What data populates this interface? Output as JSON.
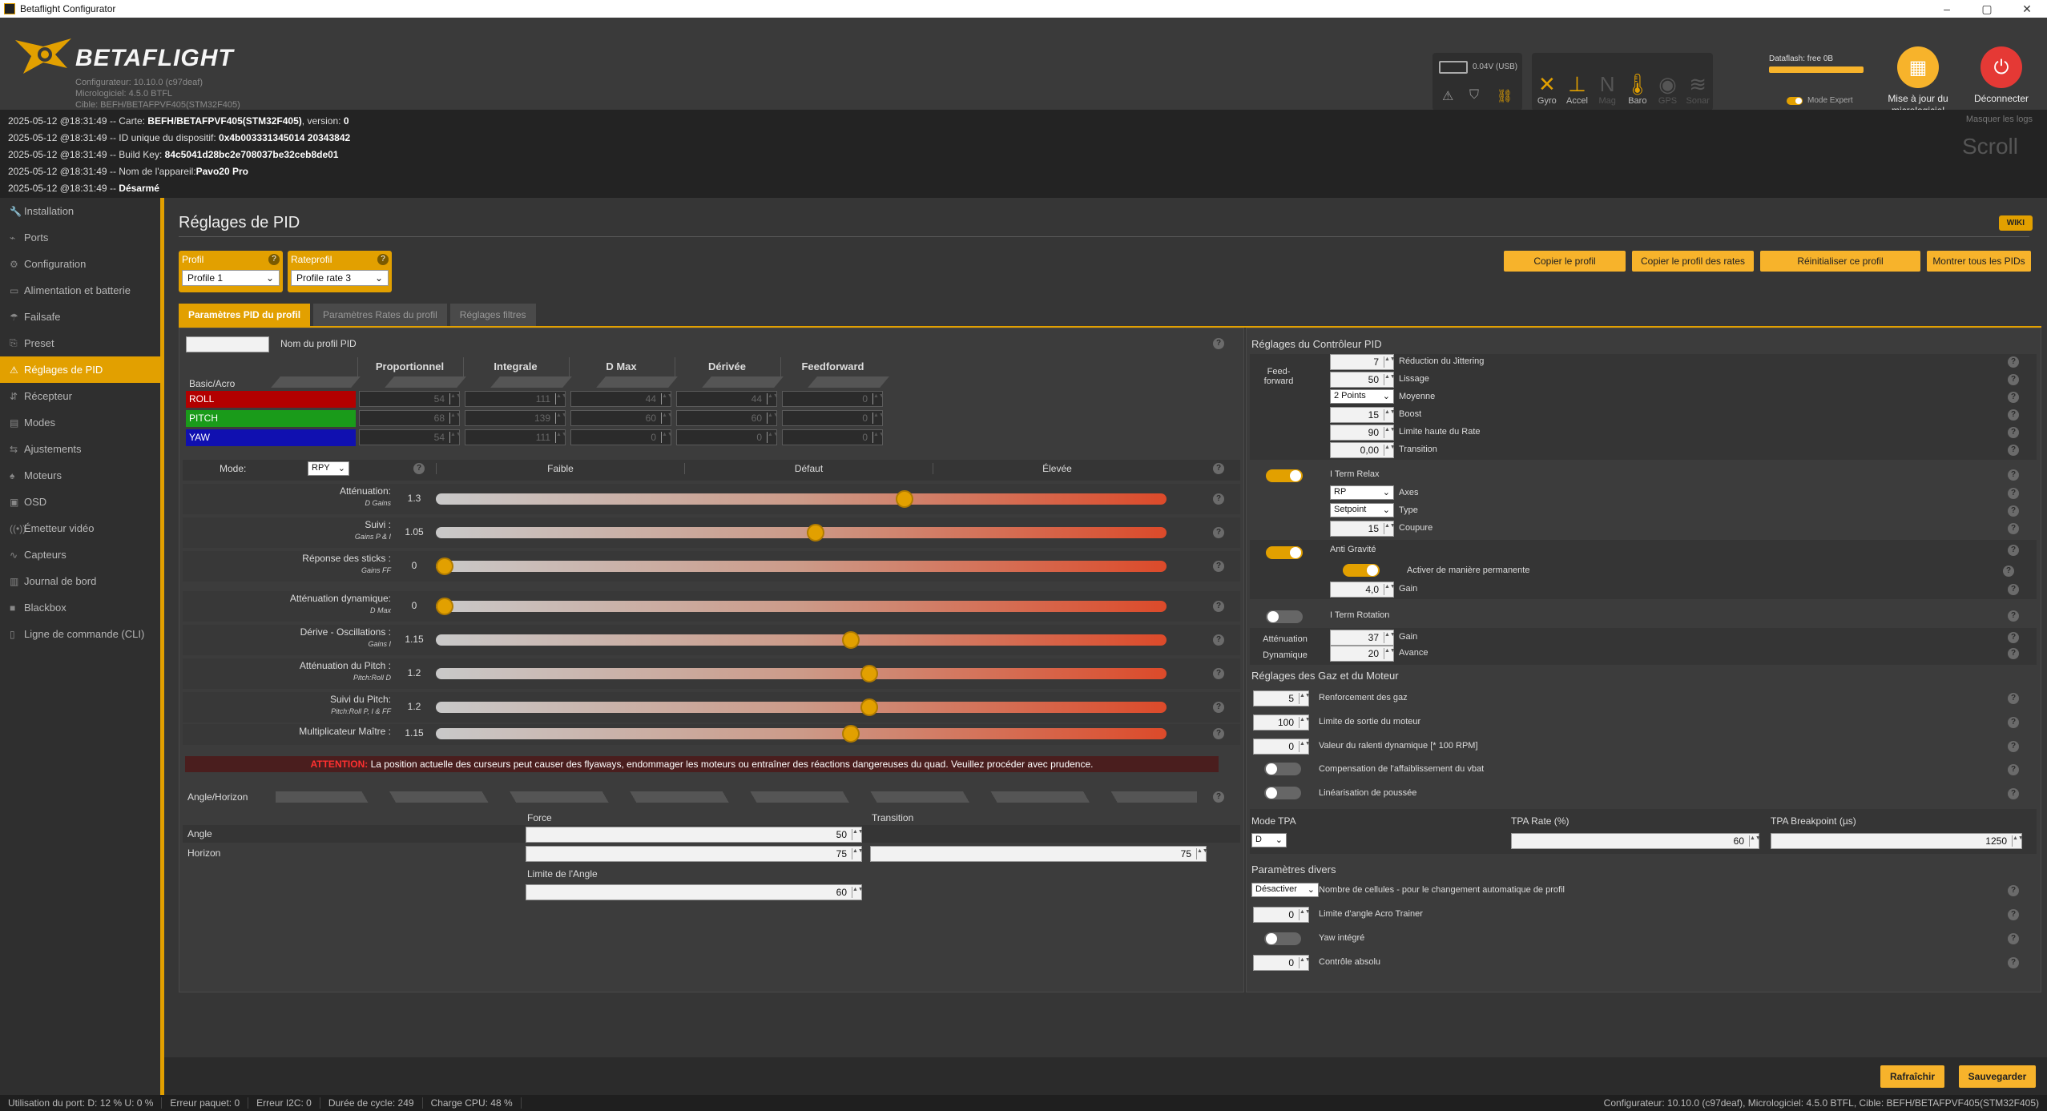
{
  "window": {
    "title": "Betaflight Configurator",
    "controls": [
      "–",
      "▢",
      "✕"
    ]
  },
  "header": {
    "brand": "BETAFLIGHT",
    "configurator": "Configurateur: 10.10.0 (c97deaf)",
    "firmware": "Micrologiciel: 4.5.0 BTFL",
    "target": "Cible: BEFH/BETAFPVF405(STM32F405)",
    "battery": "0.04V (USB)",
    "sensors": [
      {
        "label": "Gyro",
        "icon": "gyro-icon",
        "glyph": "✕",
        "active": true
      },
      {
        "label": "Accel",
        "icon": "accel-icon",
        "glyph": "⊥",
        "active": true
      },
      {
        "label": "Mag",
        "icon": "mag-icon",
        "glyph": "N",
        "active": false
      },
      {
        "label": "Baro",
        "icon": "baro-icon",
        "glyph": "🌡",
        "active": true
      },
      {
        "label": "GPS",
        "icon": "gps-icon",
        "glyph": "◉",
        "active": false
      },
      {
        "label": "Sonar",
        "icon": "sonar-icon",
        "glyph": "≋",
        "active": false
      }
    ],
    "dataflash": "Dataflash: free 0B",
    "expert_mode": "Mode Expert",
    "update_button": "Mise à jour du micrologiciel",
    "disconnect_button": "Déconnecter"
  },
  "log": {
    "hide_label": "Masquer les logs",
    "scroll_label": "Scroll",
    "lines": [
      {
        "prefix": "2025-05-12 @18:31:49 -- Carte: ",
        "value": "BEFH/BETAFPVF405(STM32F405)",
        "suffix": ", version: ",
        "extra": "0"
      },
      {
        "prefix": "2025-05-12 @18:31:49 -- ID unique du dispositif: ",
        "value": "0x4b003331345014 20343842",
        "suffix": "",
        "extra": ""
      },
      {
        "prefix": "2025-05-12 @18:31:49 -- Build Key: ",
        "value": "84c5041d28bc2e708037be32ceb8de01",
        "suffix": "",
        "extra": ""
      },
      {
        "prefix": "2025-05-12 @18:31:49 -- Nom de l'appareil:",
        "value": "Pavo20 Pro",
        "suffix": "",
        "extra": ""
      },
      {
        "prefix": "2025-05-12 @18:31:49 -- ",
        "value": "Désarmé",
        "suffix": "",
        "extra": ""
      }
    ]
  },
  "sidebar": {
    "items": [
      {
        "label": "Installation",
        "glyph": "🔧"
      },
      {
        "label": "Ports",
        "glyph": "⌁"
      },
      {
        "label": "Configuration",
        "glyph": "⚙"
      },
      {
        "label": "Alimentation et batterie",
        "glyph": "▭"
      },
      {
        "label": "Failsafe",
        "glyph": "☂"
      },
      {
        "label": "Preset",
        "glyph": "⎘"
      },
      {
        "label": "Réglages de PID",
        "glyph": "⚠"
      },
      {
        "label": "Récepteur",
        "glyph": "⇵"
      },
      {
        "label": "Modes",
        "glyph": "▤"
      },
      {
        "label": "Ajustements",
        "glyph": "⇆"
      },
      {
        "label": "Moteurs",
        "glyph": "♠"
      },
      {
        "label": "OSD",
        "glyph": "▣"
      },
      {
        "label": "Émetteur vidéo",
        "glyph": "((•))"
      },
      {
        "label": "Capteurs",
        "glyph": "∿"
      },
      {
        "label": "Journal de bord",
        "glyph": "▥"
      },
      {
        "label": "Blackbox",
        "glyph": "■"
      },
      {
        "label": "Ligne de commande (CLI)",
        "glyph": "▯"
      }
    ]
  },
  "page": {
    "title": "Réglages de PID",
    "wiki": "WIKI",
    "profile_label": "Profil",
    "profile_value": "Profile 1",
    "rateprofile_label": "Rateprofil",
    "rateprofile_value": "Profile rate 3",
    "actions": [
      "Copier le profil",
      "Copier le profil des rates",
      "Réinitialiser ce profil",
      "Montrer tous les PIDs"
    ],
    "tabs": [
      "Paramètres PID du profil",
      "Paramètres Rates du profil",
      "Réglages filtres"
    ]
  },
  "pid": {
    "profile_name_label": "Nom du profil PID",
    "profile_name_value": "",
    "group_label": "Basic/Acro",
    "columns": [
      "Proportionnel",
      "Integrale",
      "D Max",
      "Dérivée",
      "Feedforward"
    ],
    "rows": [
      {
        "axis": "ROLL",
        "color": "#b30000",
        "values": [
          "54",
          "111",
          "44",
          "44",
          "0"
        ]
      },
      {
        "axis": "PITCH",
        "color": "#1a9b1a",
        "values": [
          "68",
          "139",
          "60",
          "60",
          "0"
        ]
      },
      {
        "axis": "YAW",
        "color": "#1010b0",
        "values": [
          "54",
          "111",
          "0",
          "0",
          "0"
        ]
      }
    ]
  },
  "sliders": {
    "mode_label": "Mode:",
    "mode_value": "RPY",
    "levels": [
      "Faible",
      "Défaut",
      "Élevée"
    ],
    "items": [
      {
        "label": "Atténuation:",
        "sub": "D Gains",
        "value": "1.3",
        "pos": 0.645
      },
      {
        "label": "Suivi :",
        "sub": "Gains P & I",
        "value": "1.05",
        "pos": 0.52
      },
      {
        "label": "Réponse des sticks :",
        "sub": "Gains FF",
        "value": "0",
        "pos": 0.0
      },
      {
        "label": "Atténuation dynamique:",
        "sub": "D Max",
        "value": "0",
        "pos": 0.0
      },
      {
        "label": "Dérive - Oscillations :",
        "sub": "Gains I",
        "value": "1.15",
        "pos": 0.57
      },
      {
        "label": "Atténuation du Pitch :",
        "sub": "Pitch:Roll D",
        "value": "1.2",
        "pos": 0.595
      },
      {
        "label": "Suivi du Pitch:",
        "sub": "Pitch:Roll P, I & FF",
        "value": "1.2",
        "pos": 0.595
      },
      {
        "label": "Multiplicateur Maître :",
        "sub": "",
        "value": "1.15",
        "pos": 0.57
      }
    ],
    "warning_label": "ATTENTION:",
    "warning_text": "La position actuelle des curseurs peut causer des flyaways, endommager les moteurs ou entraîner des réactions dangereuses du quad. Veuillez procéder avec prudence."
  },
  "angle": {
    "title": "Angle/Horizon",
    "force_label": "Force",
    "transition_label": "Transition",
    "angle_label": "Angle",
    "horizon_label": "Horizon",
    "angle_force": "50",
    "horizon_force": "75",
    "horizon_transition": "75",
    "limit_label": "Limite de l'Angle",
    "limit_value": "60"
  },
  "controller": {
    "title": "Réglages du Contrôleur PID",
    "ff_label": "Feed-forward",
    "ff_fields": [
      {
        "value": "7",
        "label": "Réduction du Jittering"
      },
      {
        "value": "50",
        "label": "Lissage"
      },
      {
        "value": "2 Points",
        "label": "Moyenne"
      },
      {
        "value": "15",
        "label": "Boost"
      },
      {
        "value": "90",
        "label": "Limite haute du Rate"
      },
      {
        "value": "0,00",
        "label": "Transition"
      }
    ],
    "iterm_relax_label": "I Term Relax",
    "iterm_axes_value": "RP",
    "iterm_axes_label": "Axes",
    "iterm_type_value": "Setpoint",
    "iterm_type_label": "Type",
    "iterm_cutoff_value": "15",
    "iterm_cutoff_label": "Coupure",
    "antigravity_label": "Anti Gravité",
    "antigravity_permanent_label": "Activer de manière permanente",
    "antigravity_gain_value": "4,0",
    "antigravity_gain_label": "Gain",
    "iterm_rotation_label": "I Term Rotation",
    "dyn_damp_label": "Atténuation Dynamique",
    "dyn_gain_value": "37",
    "dyn_gain_label": "Gain",
    "dyn_advance_value": "20",
    "dyn_advance_label": "Avance"
  },
  "throttle": {
    "title": "Réglages des Gaz et du Moteur",
    "fields": [
      {
        "value": "5",
        "label": "Renforcement des gaz"
      },
      {
        "value": "100",
        "label": "Limite de sortie du moteur"
      },
      {
        "value": "0",
        "label": "Valeur du ralenti dynamique [* 100 RPM]"
      }
    ],
    "vbat_label": "Compensation de l'affaiblissement du vbat",
    "thrust_label": "Linéarisation de poussée"
  },
  "tpa": {
    "mode_label": "Mode TPA",
    "mode_value": "D",
    "rate_label": "TPA Rate (%)",
    "rate_value": "60",
    "breakpoint_label": "TPA Breakpoint (µs)",
    "breakpoint_value": "1250"
  },
  "misc": {
    "title": "Paramètres divers",
    "cells_value": "Désactiver",
    "cells_label": "Nombre de cellules - pour le changement automatique de profil",
    "acro_value": "0",
    "acro_label": "Limite d'angle Acro Trainer",
    "yaw_label": "Yaw intégré",
    "abs_value": "0",
    "abs_label": "Contrôle absolu"
  },
  "bottom": {
    "refresh": "Rafraîchir",
    "save": "Sauvegarder"
  },
  "status": {
    "port": "Utilisation du port: D: 12 % U: 0 %",
    "packet": "Erreur paquet: 0",
    "i2c": "Erreur I2C: 0",
    "cycle": "Durée de cycle: 249",
    "cpu": "Charge CPU: 48 %",
    "right": "Configurateur: 10.10.0 (c97deaf), Micrologiciel: 4.5.0 BTFL, Cible: BEFH/BETAFPVF405(STM32F405)"
  },
  "colors": {
    "accent": "#e2a000",
    "button": "#f7b32b",
    "disconnect": "#e53935",
    "warning_bg": "#4a1e1e"
  }
}
